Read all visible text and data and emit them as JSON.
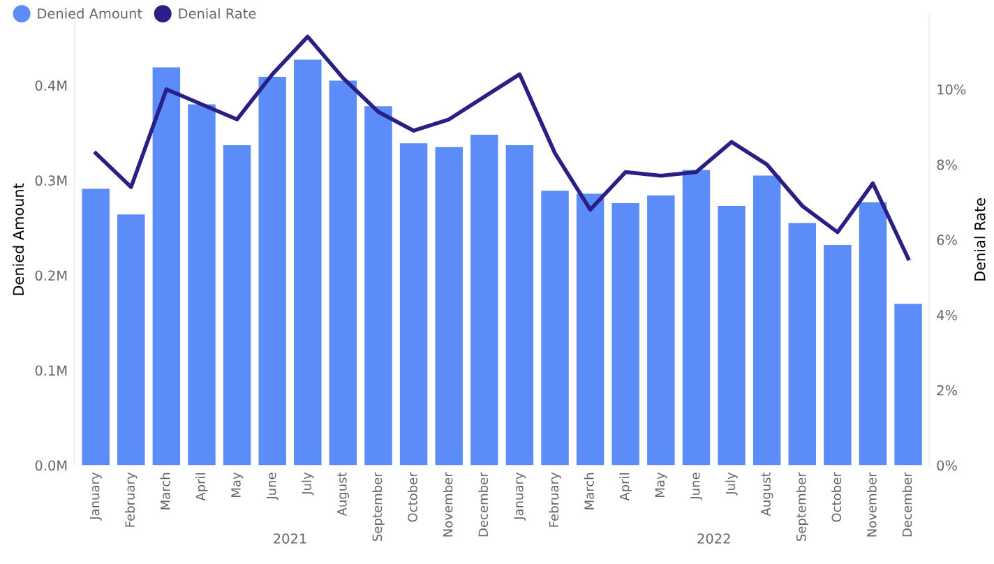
{
  "chart_data": {
    "type": "bar",
    "xlabel": null,
    "ylabel": "Denied Amount",
    "y2label": "Denial Rate",
    "categories": [
      "January",
      "February",
      "March",
      "April",
      "May",
      "June",
      "July",
      "August",
      "September",
      "October",
      "November",
      "December",
      "January",
      "February",
      "March",
      "April",
      "May",
      "June",
      "July",
      "August",
      "September",
      "October",
      "November",
      "December"
    ],
    "series": [
      {
        "name": "Denied Amount",
        "color": "#5b8cf8",
        "values": [
          291000,
          264000,
          419000,
          380000,
          337000,
          409000,
          427000,
          405000,
          378000,
          339000,
          335000,
          348000,
          337000,
          289000,
          286000,
          276000,
          284000,
          311000,
          273000,
          305000,
          255000,
          232000,
          277000,
          170000
        ]
      },
      {
        "name": "Denial Rate",
        "type": "line",
        "axis": "y2",
        "color": "#2a1f86",
        "values": [
          8.3,
          7.4,
          10.0,
          9.6,
          9.2,
          10.4,
          11.4,
          10.3,
          9.4,
          8.9,
          9.2,
          9.8,
          10.4,
          8.3,
          6.8,
          7.8,
          7.7,
          7.8,
          8.6,
          8.0,
          6.9,
          6.2,
          7.5,
          5.5
        ]
      }
    ],
    "ylim": [
      0,
      475000
    ],
    "yticks": [
      {
        "value": 0,
        "label": "0.0M"
      },
      {
        "value": 100000,
        "label": "0.1M"
      },
      {
        "value": 200000,
        "label": "0.2M"
      },
      {
        "value": 300000,
        "label": "0.3M"
      },
      {
        "value": 400000,
        "label": "0.4M"
      }
    ],
    "y2lim": [
      0,
      12
    ],
    "y2ticks": [
      {
        "value": 0,
        "label": "0%"
      },
      {
        "value": 2,
        "label": "2%"
      },
      {
        "value": 4,
        "label": "4%"
      },
      {
        "value": 6,
        "label": "6%"
      },
      {
        "value": 8,
        "label": "8%"
      },
      {
        "value": 10,
        "label": "10%"
      }
    ],
    "annotations": [
      "2021",
      "2022"
    ],
    "legend": "top left",
    "grid": false,
    "marker": "none",
    "line_style": "solid"
  }
}
